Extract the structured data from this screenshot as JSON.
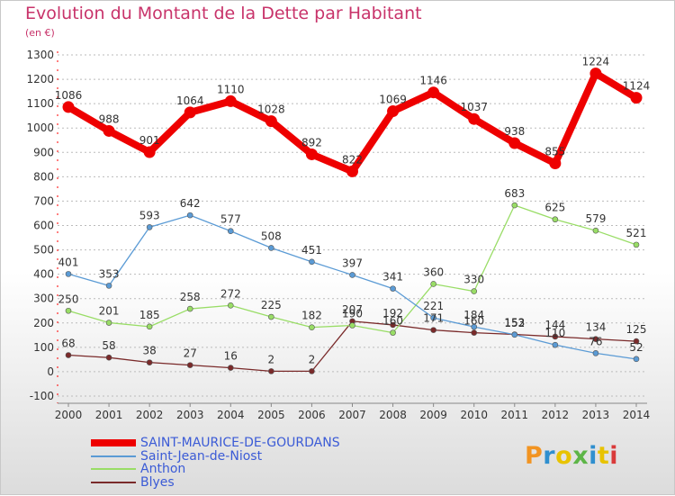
{
  "header": {
    "title": "Evolution du Montant de la Dette par Habitant",
    "subtitle": "(en €)"
  },
  "logo": {
    "text": "Proxiti",
    "colors": [
      "#f29422",
      "#2f8fcf",
      "#e8c300",
      "#5db547",
      "#2f8fcf",
      "#e8c300",
      "#d93a3a"
    ]
  },
  "colors": {
    "title": "#c8336a",
    "grid": "#bbbbbb",
    "axis_text": "#333333"
  },
  "chart_data": {
    "type": "line",
    "title": "Evolution du Montant de la Dette par Habitant",
    "subtitle": "(en €)",
    "x": [
      "2000",
      "2001",
      "2002",
      "2003",
      "2004",
      "2005",
      "2006",
      "2007",
      "2008",
      "2009",
      "2010",
      "2011",
      "2012",
      "2013",
      "2014"
    ],
    "yticks": [
      "-100",
      "0",
      "100",
      "200",
      "300",
      "400",
      "500",
      "600",
      "700",
      "800",
      "900",
      "1000",
      "1100",
      "1200",
      "1300"
    ],
    "ylim": [
      -100,
      1300
    ],
    "grid": "horizontal dashed",
    "legend_position": "bottom-left",
    "series": [
      {
        "name": "SAINT-MAURICE-DE-GOURDANS",
        "color": "#ee0000",
        "bold": true,
        "values": [
          1086,
          988,
          901,
          1064,
          1110,
          1028,
          892,
          822,
          1069,
          1146,
          1037,
          938,
          855,
          1224,
          1124
        ],
        "labels": [
          "1086",
          "988",
          "901",
          "1064",
          "1110",
          "1028",
          "892",
          "822",
          "1069",
          "1146",
          "1037",
          "938",
          "855",
          "1224",
          "1124"
        ]
      },
      {
        "name": "Saint-Jean-de-Niost",
        "color": "#5b9bd5",
        "values": [
          401,
          353,
          593,
          642,
          577,
          508,
          451,
          397,
          341,
          221,
          184,
          152,
          110,
          76,
          52
        ],
        "labels": [
          "401",
          "353",
          "593",
          "642",
          "577",
          "508",
          "451",
          "397",
          "341",
          "221",
          "184",
          "152",
          "110",
          "76",
          "52"
        ]
      },
      {
        "name": "Anthon",
        "color": "#99dd66",
        "values": [
          250,
          201,
          185,
          258,
          272,
          225,
          182,
          190,
          160,
          360,
          330,
          683,
          625,
          579,
          521
        ],
        "labels": [
          "250",
          "201",
          "185",
          "258",
          "272",
          "225",
          "182",
          "190",
          "160",
          "360",
          "330",
          "683",
          "625",
          "579",
          "521"
        ]
      },
      {
        "name": "Blyes",
        "color": "#7a2a2a",
        "values": [
          68,
          58,
          38,
          27,
          16,
          2,
          2,
          207,
          192,
          171,
          160,
          153,
          144,
          134,
          125
        ],
        "labels": [
          "68",
          "58",
          "38",
          "27",
          "16",
          "2",
          "2",
          "207",
          "192",
          "171",
          "160",
          "153",
          "144",
          "134",
          "125"
        ]
      }
    ]
  }
}
